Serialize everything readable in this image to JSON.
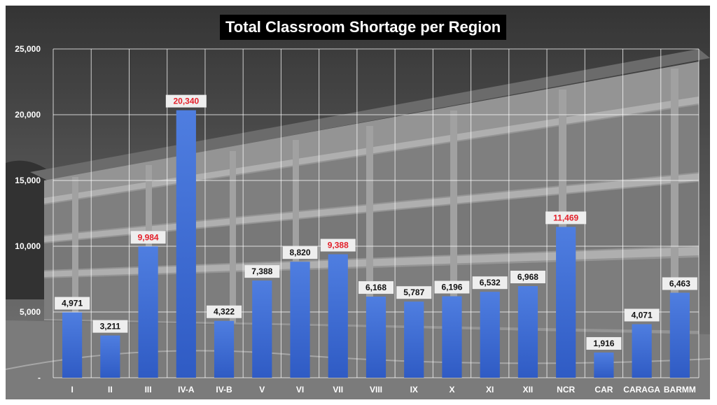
{
  "chart_data": {
    "type": "bar",
    "title": "Total Classroom Shortage per Region",
    "xlabel": "",
    "ylabel": "",
    "ylim": [
      0,
      25000
    ],
    "yticks": [
      "-",
      "5,000",
      "10,000",
      "15,000",
      "20,000",
      "25,000"
    ],
    "grid": true,
    "categories": [
      "I",
      "II",
      "III",
      "IV-A",
      "IV-B",
      "V",
      "VI",
      "VII",
      "VIII",
      "IX",
      "X",
      "XI",
      "XII",
      "NCR",
      "CAR",
      "CARAGA",
      "BARMM"
    ],
    "values": [
      4971,
      3211,
      9984,
      20340,
      4322,
      7388,
      8820,
      9388,
      6168,
      5787,
      6196,
      6532,
      6968,
      11469,
      1916,
      4071,
      6463
    ],
    "data_labels": [
      "4,971",
      "3,211",
      "9,984",
      "20,340",
      "4,322",
      "7,388",
      "8,820",
      "9,388",
      "6,168",
      "5,787",
      "6,196",
      "6,532",
      "6,968",
      "11,469",
      "1,916",
      "4,071",
      "6,463"
    ],
    "highlighted": [
      "III",
      "IV-A",
      "VII",
      "NCR"
    ],
    "colors": {
      "bar_top": "#4f7ee0",
      "bar_bottom": "#2f5bc4",
      "label_normal": "#111111",
      "label_highlight": "#e3202a",
      "label_box": "#eeeeee"
    }
  }
}
